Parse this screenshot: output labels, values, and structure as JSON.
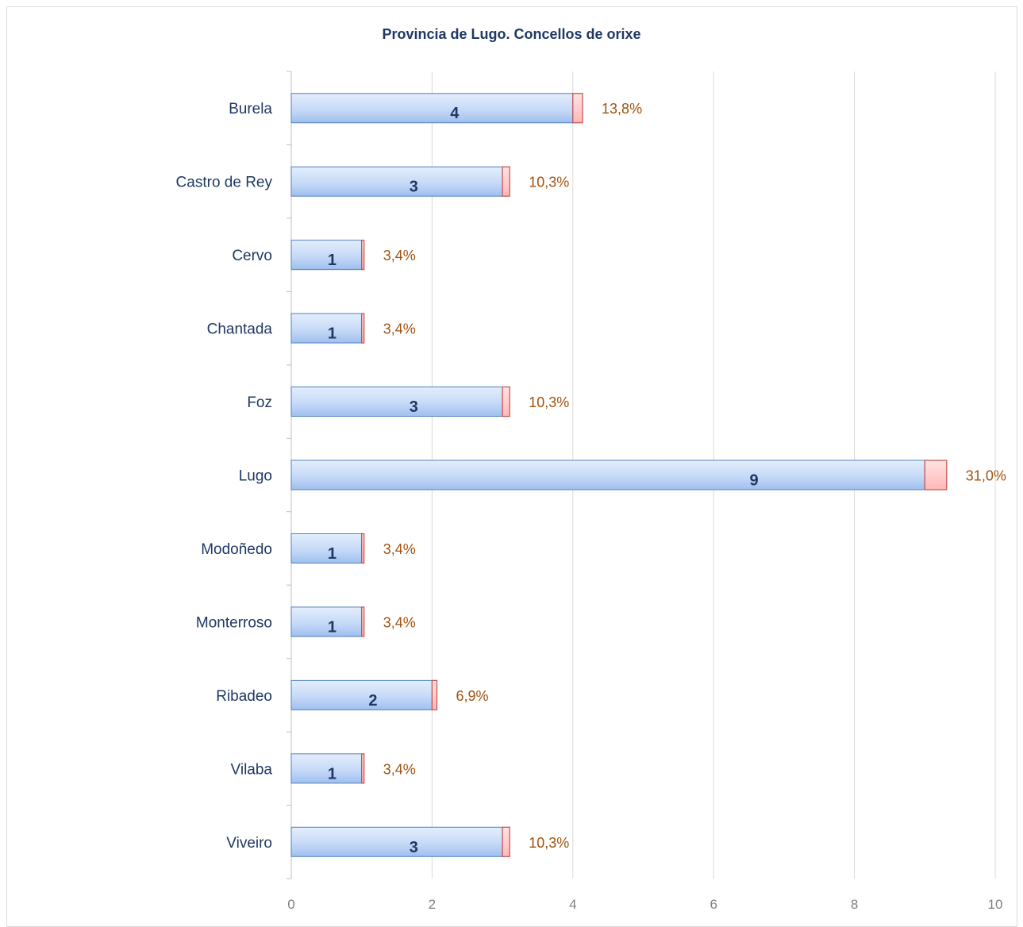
{
  "chart_data": {
    "type": "bar",
    "orientation": "horizontal",
    "title": "Provincia de Lugo. Concellos de orixe",
    "xlabel": "",
    "ylabel": "",
    "categories": [
      "Burela",
      "Castro de Rey",
      "Cervo",
      "Chantada",
      "Foz",
      "Lugo",
      "Modoñedo",
      "Monterroso",
      "Ribadeo",
      "Vilaba",
      "Viveiro"
    ],
    "series": [
      {
        "values": [
          4,
          3,
          1,
          1,
          3,
          9,
          1,
          1,
          2,
          1,
          3
        ]
      },
      {
        "values": [
          0.138,
          0.103,
          0.034,
          0.034,
          0.103,
          0.31,
          0.034,
          0.034,
          0.069,
          0.034,
          0.103
        ]
      }
    ],
    "value_labels": [
      "4",
      "3",
      "1",
      "1",
      "3",
      "9",
      "1",
      "1",
      "2",
      "1",
      "3"
    ],
    "percent_labels": [
      "13,8%",
      "10,3%",
      "3,4%",
      "3,4%",
      "10,3%",
      "31,0%",
      "3,4%",
      "3,4%",
      "6,9%",
      "3,4%",
      "10,3%"
    ],
    "xlim": [
      0,
      10
    ],
    "x_ticks": [
      "0",
      "2",
      "4",
      "6",
      "8",
      "10"
    ],
    "grid": true,
    "stacked": true,
    "colors": {
      "count": "#c5d9f7",
      "count_edge": "#4f81bd",
      "percent": "#ffc7c7",
      "percent_edge": "#c0504d"
    }
  }
}
